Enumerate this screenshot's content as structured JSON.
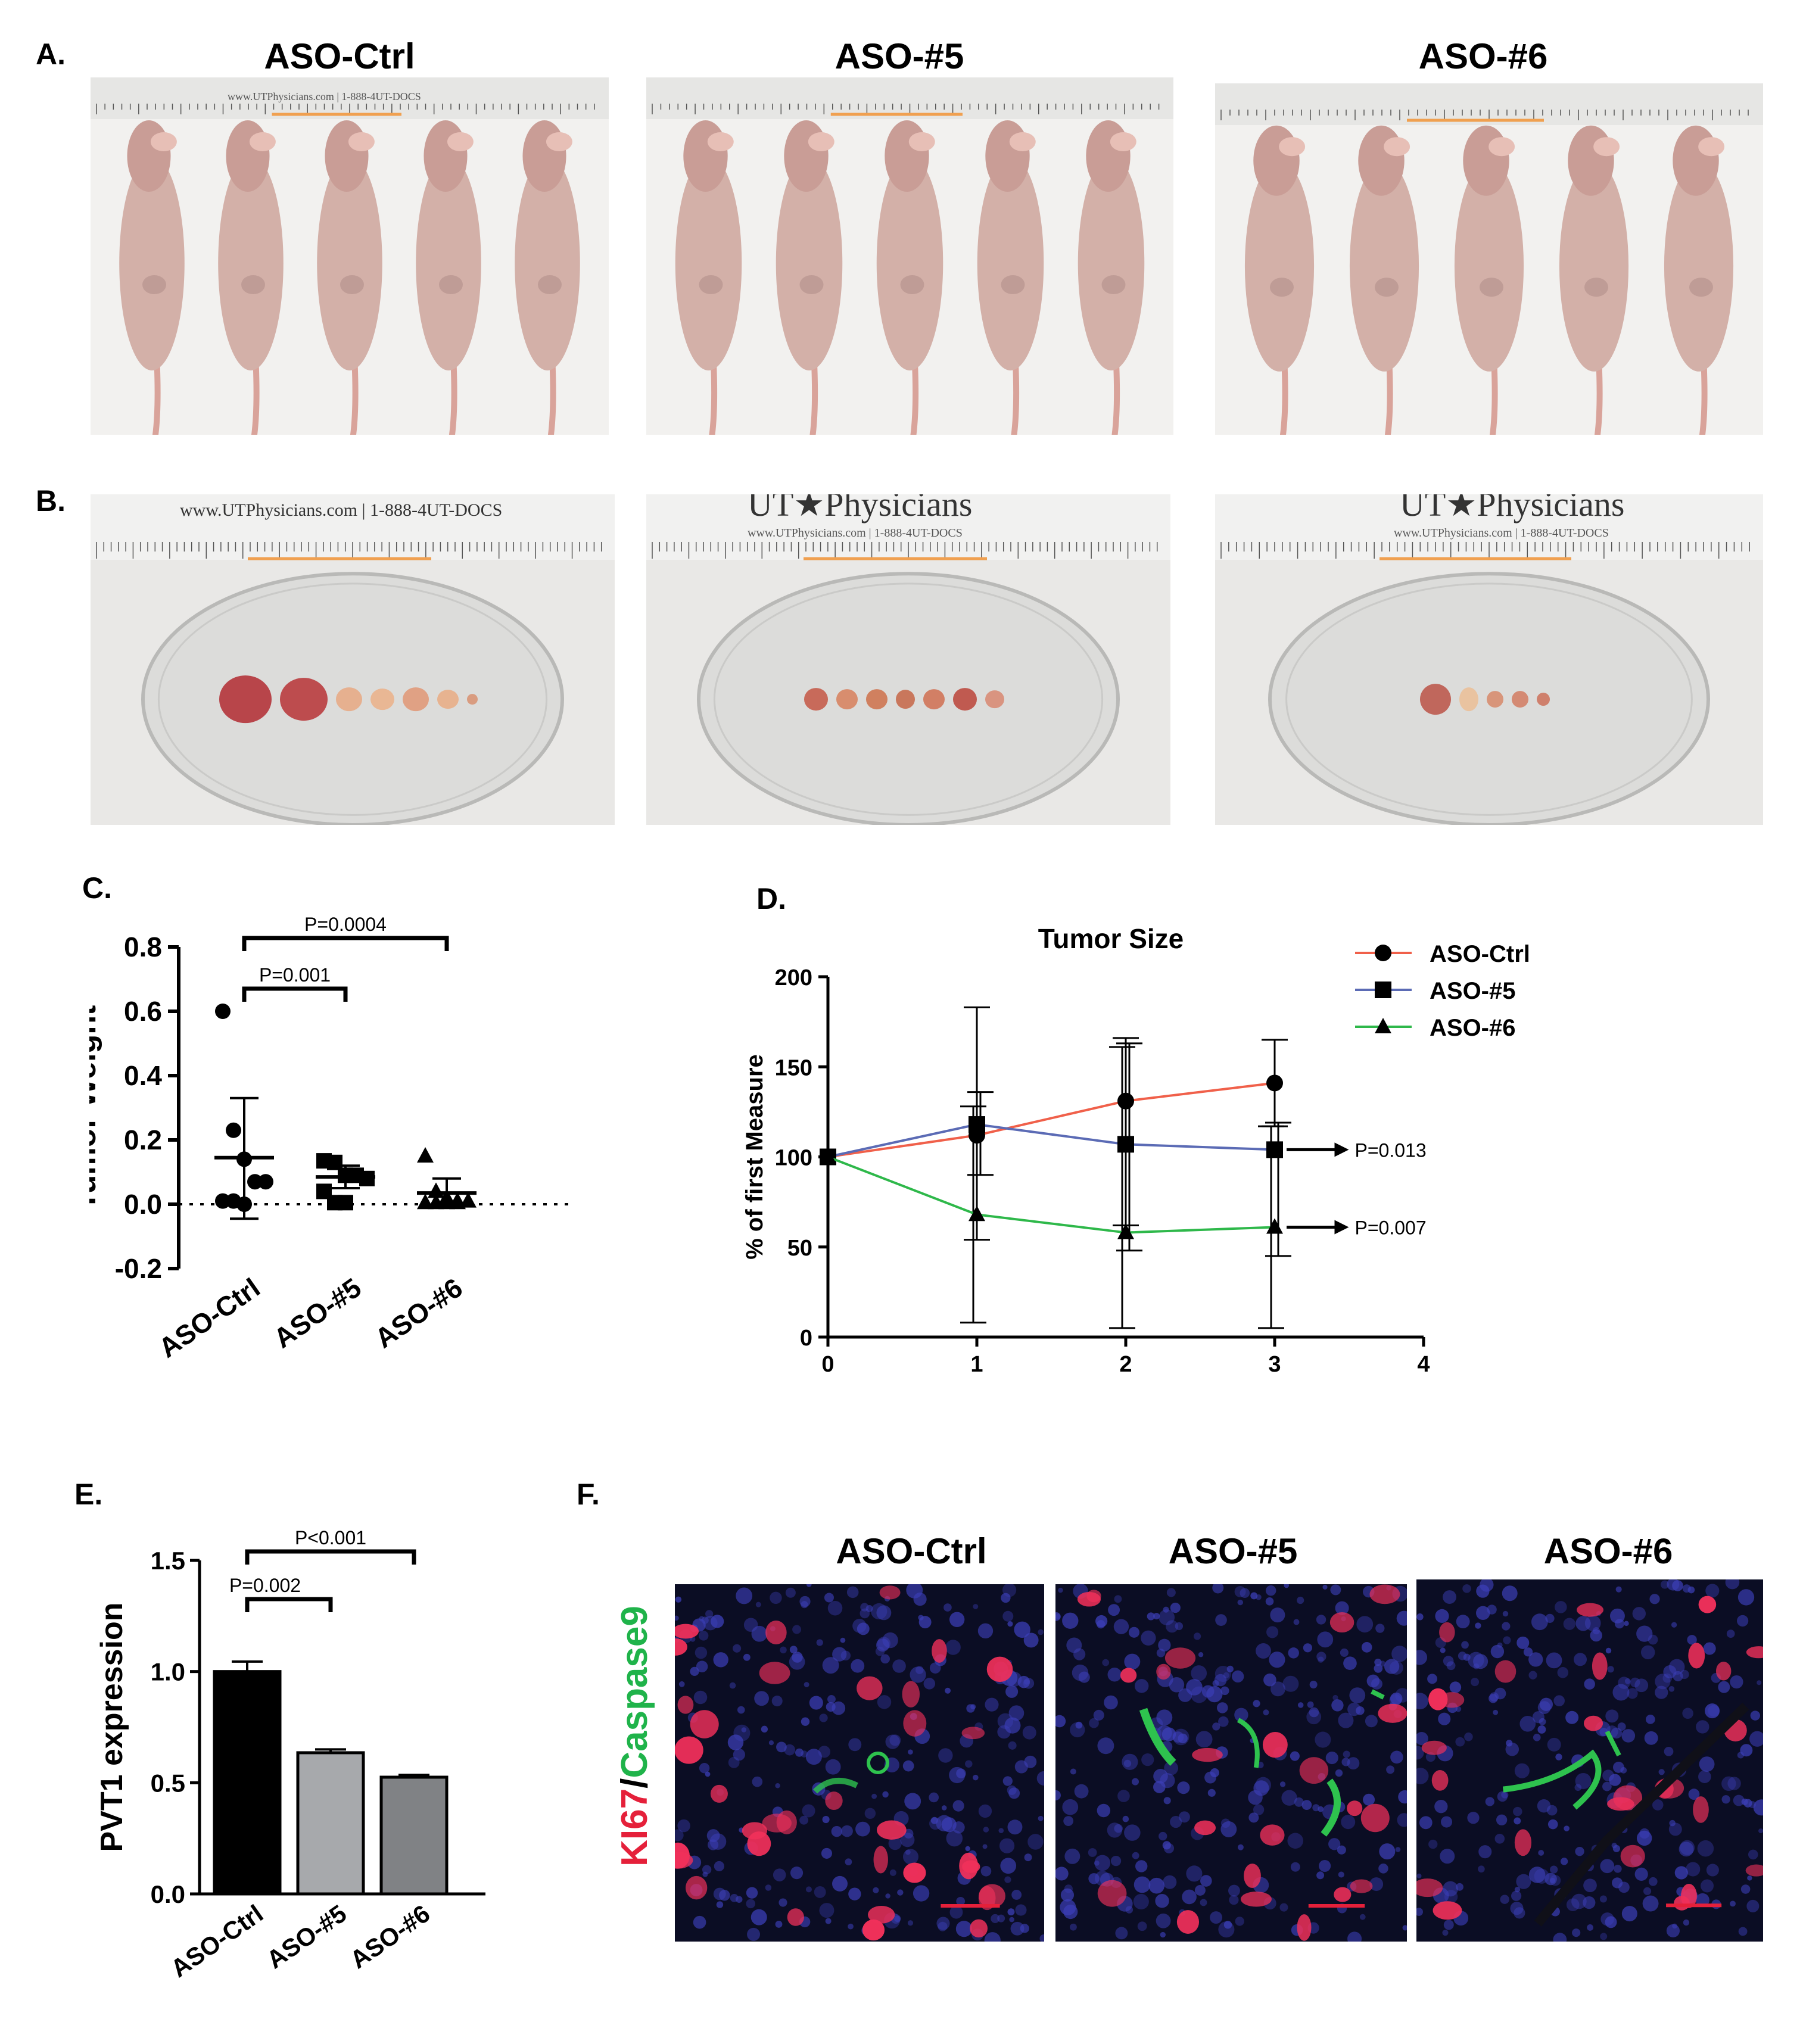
{
  "panels": {
    "A": "A.",
    "B": "B.",
    "C": "C.",
    "D": "D.",
    "E": "E.",
    "F": "F."
  },
  "groups": [
    "ASO-Ctrl",
    "ASO-#5",
    "ASO-#6"
  ],
  "photos": {
    "ruler_text_A1": "www.UTPhysicians.com | 1-888-4UT-DOCS",
    "ruler_text_B1": "www.UTPhysicians.com | 1-888-4UT-DOCS",
    "ruler_text_B2": "UT★Physicians",
    "ruler_text_B2_sub": "www.UTPhysicians.com | 1-888-4UT-DOCS",
    "ruler_text_B3": "UT★Physicians",
    "ruler_text_B3_sub": "www.UTPhysicians.com | 1-888-4UT-DOCS"
  },
  "fluorescence": {
    "stain_label_red": "KI67",
    "stain_label_sep": "/",
    "stain_label_green": "Caspase9",
    "red_color": "#e5203a",
    "green_color": "#1fb34a"
  },
  "chart_data": [
    {
      "id": "C",
      "type": "scatter",
      "ylabel": "Tumor Weight",
      "categories": [
        "ASO-Ctrl",
        "ASO-#5",
        "ASO-#6"
      ],
      "ylim": [
        -0.2,
        0.8
      ],
      "yticks": [
        "-0.2",
        "0.0",
        "0.2",
        "0.4",
        "0.6",
        "0.8"
      ],
      "ytick_values": [
        -0.2,
        0.0,
        0.2,
        0.4,
        0.6,
        0.8
      ],
      "series": [
        {
          "name": "ASO-Ctrl",
          "marker": "circle",
          "mean": 0.145,
          "sd_upper": 0.33,
          "sd_lower": -0.045,
          "points": [
            0.6,
            0.23,
            0.14,
            0.07,
            0.07,
            0.01,
            0.01,
            0.0
          ]
        },
        {
          "name": "ASO-#5",
          "marker": "square",
          "mean": 0.085,
          "sd_upper": 0.12,
          "sd_lower": 0.05,
          "points": [
            0.135,
            0.13,
            0.09,
            0.09,
            0.08,
            0.04,
            0.005,
            0.005
          ]
        },
        {
          "name": "ASO-#6",
          "marker": "triangle",
          "mean": 0.035,
          "sd_upper": 0.08,
          "sd_lower": 0.0,
          "points": [
            0.15,
            0.04,
            0.02,
            0.01,
            0.01,
            0.005,
            0.005,
            0.005,
            0.005
          ]
        }
      ],
      "comparisons": [
        {
          "from": "ASO-Ctrl",
          "to": "ASO-#5",
          "label": "P=0.001"
        },
        {
          "from": "ASO-Ctrl",
          "to": "ASO-#6",
          "label": "P=0.0004"
        }
      ],
      "reference_line_y": 0.0
    },
    {
      "id": "D",
      "type": "line",
      "title": "Tumor Size",
      "ylabel": "% of first Measure",
      "x": [
        0,
        1,
        2,
        3
      ],
      "xlim": [
        0,
        4
      ],
      "xticks": [
        "0",
        "1",
        "2",
        "3",
        "4"
      ],
      "ylim": [
        0,
        200
      ],
      "yticks": [
        "0",
        "50",
        "100",
        "150",
        "200"
      ],
      "series": [
        {
          "name": "ASO-Ctrl",
          "color": "#f0604a",
          "marker": "circle",
          "values": [
            100,
            112,
            131,
            141
          ],
          "err_upper": [
            100,
            183,
            166,
            165
          ],
          "err_lower": [
            100,
            54,
            62,
            117
          ]
        },
        {
          "name": "ASO-#5",
          "color": "#5b6bb5",
          "marker": "square",
          "values": [
            100,
            118,
            107,
            104
          ],
          "err_upper": [
            100,
            136,
            163,
            119
          ],
          "err_lower": [
            100,
            90,
            48,
            45
          ]
        },
        {
          "name": "ASO-#6",
          "color": "#2eb84a",
          "marker": "triangle",
          "values": [
            100,
            68,
            58,
            61
          ],
          "err_upper": [
            100,
            128,
            161,
            117
          ],
          "err_lower": [
            100,
            8,
            5,
            5
          ]
        }
      ],
      "annotations": [
        {
          "label": "P=0.013",
          "at_series": "ASO-#5"
        },
        {
          "label": "P=0.007",
          "at_series": "ASO-#6"
        }
      ],
      "legend_position": "top-right"
    },
    {
      "id": "E",
      "type": "bar",
      "ylabel": "PVT1 expression",
      "categories": [
        "ASO-Ctrl",
        "ASO-#5",
        "ASO-#6"
      ],
      "values": [
        1.0,
        0.635,
        0.525
      ],
      "errors": [
        0.045,
        0.015,
        0.01
      ],
      "colors": [
        "#000000",
        "#a7a9ac",
        "#808285"
      ],
      "ylim": [
        0,
        1.5
      ],
      "yticks": [
        "0.0",
        "0.5",
        "1.0",
        "1.5"
      ],
      "comparisons": [
        {
          "from": "ASO-Ctrl",
          "to": "ASO-#5",
          "label": "P=0.002"
        },
        {
          "from": "ASO-Ctrl",
          "to": "ASO-#6",
          "label": "P<0.001"
        }
      ]
    }
  ]
}
